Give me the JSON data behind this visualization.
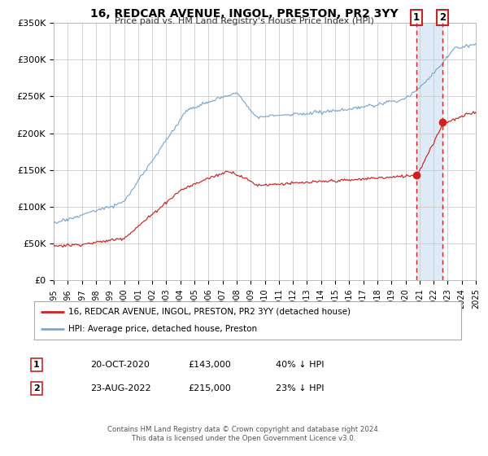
{
  "title": "16, REDCAR AVENUE, INGOL, PRESTON, PR2 3YY",
  "subtitle": "Price paid vs. HM Land Registry's House Price Index (HPI)",
  "legend_line1": "16, REDCAR AVENUE, INGOL, PRESTON, PR2 3YY (detached house)",
  "legend_line2": "HPI: Average price, detached house, Preston",
  "annotation1_label": "1",
  "annotation1_date": "20-OCT-2020",
  "annotation1_price": "£143,000",
  "annotation1_hpi": "40% ↓ HPI",
  "annotation2_label": "2",
  "annotation2_date": "23-AUG-2022",
  "annotation2_price": "£215,000",
  "annotation2_hpi": "23% ↓ HPI",
  "footer1": "Contains HM Land Registry data © Crown copyright and database right 2024.",
  "footer2": "This data is licensed under the Open Government Licence v3.0.",
  "hpi_color": "#7aa8d2",
  "price_color": "#cc2222",
  "background_color": "#ffffff",
  "highlight_color": "#deeaf5",
  "grid_color": "#cccccc",
  "ylim": [
    0,
    350000
  ],
  "yticks": [
    0,
    50000,
    100000,
    150000,
    200000,
    250000,
    300000,
    350000
  ],
  "ytick_labels": [
    "£0",
    "£50K",
    "£100K",
    "£150K",
    "£200K",
    "£250K",
    "£300K",
    "£350K"
  ],
  "start_year": 1995,
  "end_year": 2025,
  "vline1_year": 2020.792,
  "vline2_year": 2022.625,
  "marker1_price_val": 143000,
  "marker2_price_val": 215000
}
